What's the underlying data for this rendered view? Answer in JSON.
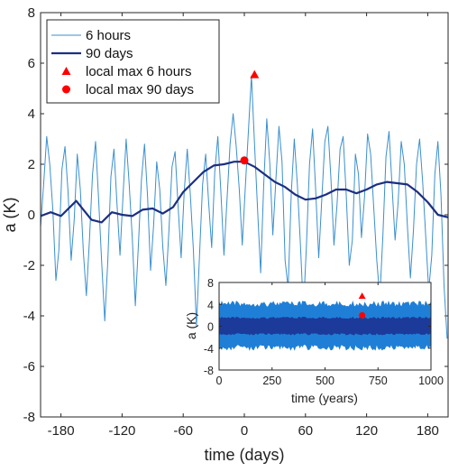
{
  "chart_data": [
    {
      "id": "main",
      "type": "line",
      "xlabel": "time (days)",
      "ylabel": "a (K)",
      "xlim": [
        -200,
        200
      ],
      "ylim": [
        -8,
        8
      ],
      "xticks": [
        "-180",
        "-120",
        "-60",
        "0",
        "60",
        "120",
        "180"
      ],
      "yticks": [
        "-8",
        "-6",
        "-4",
        "-2",
        "0",
        "2",
        "4",
        "6",
        "8"
      ],
      "legend_position": "top-left",
      "series": [
        {
          "name": "6 hours",
          "color": "#3a8fd0",
          "x": [
            -200,
            -197,
            -194,
            -191,
            -188,
            -185,
            -182,
            -179,
            -176,
            -173,
            -170,
            -167,
            -164,
            -161,
            -158,
            -155,
            -152,
            -149,
            -146,
            -143,
            -140,
            -137,
            -134,
            -131,
            -128,
            -125,
            -122,
            -119,
            -116,
            -113,
            -110,
            -107,
            -104,
            -101,
            -98,
            -95,
            -92,
            -89,
            -86,
            -83,
            -80,
            -77,
            -74,
            -71,
            -68,
            -65,
            -62,
            -59,
            -56,
            -53,
            -50,
            -47,
            -44,
            -41,
            -38,
            -35,
            -32,
            -29,
            -26,
            -23,
            -20,
            -17,
            -14,
            -11,
            -8,
            -5,
            -2,
            1,
            4,
            7,
            10,
            13,
            16,
            19,
            22,
            25,
            28,
            31,
            34,
            37,
            40,
            43,
            46,
            49,
            52,
            55,
            58,
            61,
            64,
            67,
            70,
            73,
            76,
            79,
            82,
            85,
            88,
            91,
            94,
            97,
            100,
            103,
            106,
            109,
            112,
            115,
            118,
            121,
            124,
            127,
            130,
            133,
            136,
            139,
            142,
            145,
            148,
            151,
            154,
            157,
            160,
            163,
            166,
            169,
            172,
            175,
            178,
            181,
            184,
            187,
            190,
            193,
            196,
            199
          ],
          "values": [
            -0.5,
            1.2,
            3.1,
            2.0,
            0.2,
            -2.6,
            -1.4,
            1.8,
            2.7,
            0.9,
            -1.8,
            -0.2,
            2.4,
            1.0,
            -1.5,
            -3.2,
            -1.0,
            1.6,
            2.9,
            0.6,
            -1.9,
            -4.2,
            -1.8,
            1.5,
            2.6,
            0.4,
            -1.6,
            0.8,
            3.0,
            1.2,
            -0.9,
            -3.6,
            -1.2,
            1.4,
            2.8,
            0.7,
            -2.2,
            -0.4,
            2.1,
            1.0,
            -1.3,
            -2.8,
            -0.6,
            1.9,
            2.5,
            0.3,
            -1.7,
            0.9,
            2.6,
            0.8,
            -1.4,
            -4.4,
            -1.6,
            1.2,
            2.4,
            0.5,
            -1.3,
            1.7,
            3.1,
            0.9,
            -1.6,
            0.6,
            2.8,
            4.0,
            2.7,
            1.0,
            -1.2,
            1.1,
            3.3,
            5.5,
            2.8,
            0.2,
            -2.3,
            1.2,
            3.8,
            2.0,
            -0.8,
            1.4,
            3.5,
            2.1,
            -1.8,
            -2.9,
            0.8,
            3.0,
            1.2,
            -1.1,
            -3.8,
            -1.2,
            2.0,
            3.4,
            1.0,
            -1.7,
            0.6,
            2.9,
            3.5,
            1.4,
            -1.2,
            0.4,
            2.6,
            3.1,
            0.8,
            -2.0,
            -1.0,
            2.4,
            1.6,
            -0.9,
            0.7,
            3.2,
            2.4,
            0.3,
            -1.8,
            -3.3,
            -0.8,
            2.3,
            3.3,
            1.1,
            -1.0,
            0.5,
            2.9,
            2.0,
            -0.4,
            -2.5,
            -0.6,
            2.0,
            3.0,
            1.3,
            -0.8,
            -3.0,
            -1.6,
            1.6,
            2.9,
            0.8,
            -2.8,
            -4.9
          ]
        },
        {
          "name": "90 days",
          "color": "#1c2f80",
          "x": [
            -200,
            -190,
            -180,
            -170,
            -165,
            -160,
            -150,
            -140,
            -130,
            -120,
            -110,
            -100,
            -90,
            -80,
            -70,
            -60,
            -50,
            -40,
            -30,
            -20,
            -10,
            0,
            10,
            20,
            30,
            40,
            50,
            60,
            70,
            80,
            90,
            100,
            110,
            120,
            130,
            140,
            150,
            160,
            170,
            180,
            190,
            200
          ],
          "values": [
            -0.05,
            0.1,
            -0.05,
            0.35,
            0.55,
            0.3,
            -0.2,
            -0.3,
            0.1,
            0.0,
            -0.05,
            0.2,
            0.25,
            0.05,
            0.3,
            0.9,
            1.3,
            1.7,
            1.95,
            2.0,
            2.1,
            2.1,
            1.9,
            1.6,
            1.3,
            1.1,
            0.8,
            0.6,
            0.65,
            0.8,
            1.0,
            1.0,
            0.85,
            1.0,
            1.2,
            1.3,
            1.25,
            1.2,
            0.9,
            0.5,
            0.0,
            -0.1
          ]
        },
        {
          "name": "local max 6 hours",
          "type": "scatter",
          "marker": "triangle",
          "color": "#ff0000",
          "x": [
            10
          ],
          "values": [
            5.55
          ]
        },
        {
          "name": "local max 90 days",
          "type": "scatter",
          "marker": "circle",
          "color": "#ff0000",
          "x": [
            0
          ],
          "values": [
            2.15
          ]
        }
      ]
    },
    {
      "id": "inset",
      "type": "area",
      "xlabel": "time (years)",
      "ylabel": "a (K)",
      "xlim": [
        0,
        1000
      ],
      "ylim": [
        -8,
        8
      ],
      "xticks": [
        "0",
        "250",
        "500",
        "750",
        "1000"
      ],
      "yticks": [
        "-8",
        "-4",
        "0",
        "4",
        "8"
      ],
      "series": [
        {
          "name": "6 hours band",
          "color": "#1f7fd6",
          "range": [
            -4.4,
            4.6
          ]
        },
        {
          "name": "90 days band",
          "color": "#1c3a9a",
          "range": [
            -1.6,
            1.7
          ]
        },
        {
          "name": "local max 6 hours",
          "type": "scatter",
          "marker": "triangle",
          "color": "#ff0000",
          "x": [
            675
          ],
          "values": [
            5.5
          ]
        },
        {
          "name": "local max 90 days",
          "type": "scatter",
          "marker": "circle",
          "color": "#ff0000",
          "x": [
            675
          ],
          "values": [
            2.0
          ]
        }
      ]
    }
  ]
}
